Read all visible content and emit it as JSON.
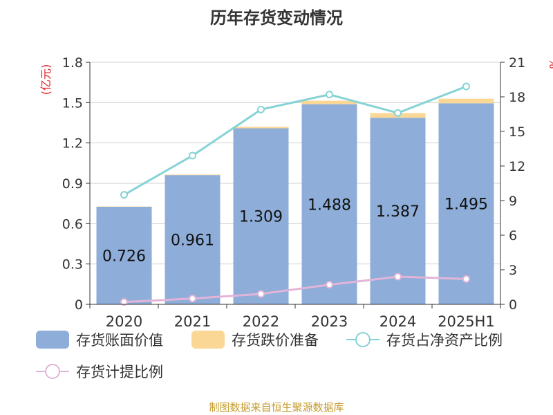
{
  "title": "历年存货变动情况",
  "source": "制图数据来自恒生聚源数据库",
  "left_unit": "(亿元)",
  "right_unit": "%",
  "colors": {
    "book_value": "#8eadd9",
    "impairment": "#fbd796",
    "net_asset_ratio": "#86d3d6",
    "provision_ratio": "#e2b5d8",
    "unit_text": "#e02020",
    "source_text": "#c49a2a"
  },
  "legend": {
    "book_value": "存货账面价值",
    "impairment": "存货跌价准备",
    "net_asset_ratio": "存货占净资产比例",
    "provision_ratio": "存货计提比例"
  },
  "chart_data": {
    "type": "bar",
    "categories": [
      "2020",
      "2021",
      "2022",
      "2023",
      "2024",
      "2025H1"
    ],
    "y_left": {
      "min": 0,
      "max": 1.8,
      "ticks": [
        "0",
        "0.3",
        "0.6",
        "0.9",
        "1.2",
        "1.5",
        "1.8"
      ]
    },
    "y_right": {
      "min": 0,
      "max": 21,
      "ticks": [
        "0",
        "3",
        "6",
        "9",
        "12",
        "15",
        "18",
        "21"
      ]
    },
    "grid": true,
    "legend_position": "bottom",
    "series": [
      {
        "name": "存货账面价值",
        "type": "bar",
        "axis": "left",
        "stack": "inv",
        "values": [
          0.726,
          0.961,
          1.309,
          1.488,
          1.387,
          1.495
        ],
        "labels": [
          "0.726",
          "0.961",
          "1.309",
          "1.488",
          "1.387",
          "1.495"
        ]
      },
      {
        "name": "存货跌价准备",
        "type": "bar",
        "axis": "left",
        "stack": "inv",
        "values": [
          0.002,
          0.004,
          0.011,
          0.026,
          0.035,
          0.034
        ]
      },
      {
        "name": "存货占净资产比例",
        "type": "line",
        "axis": "right",
        "values": [
          9.5,
          12.9,
          16.9,
          18.2,
          16.6,
          18.9
        ]
      },
      {
        "name": "存货计提比例",
        "type": "line",
        "axis": "right",
        "values": [
          0.2,
          0.5,
          0.9,
          1.7,
          2.4,
          2.2
        ]
      }
    ]
  }
}
